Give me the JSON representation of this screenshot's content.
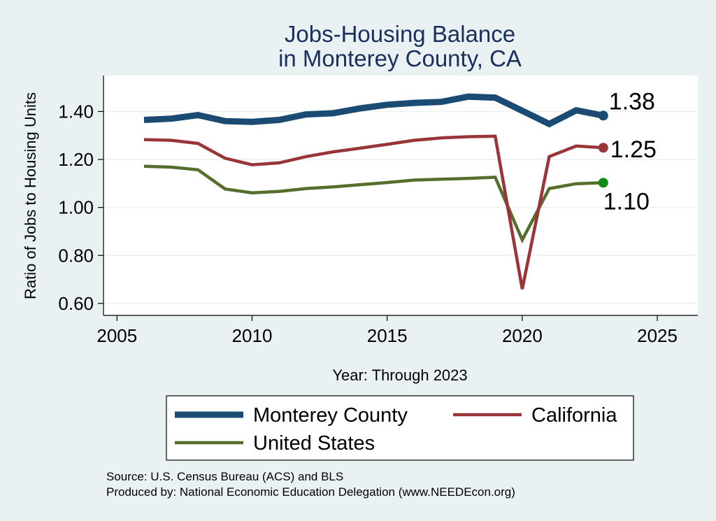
{
  "chart_data": {
    "type": "line",
    "title": [
      "Jobs-Housing Balance",
      "in Monterey County, CA"
    ],
    "xlabel": "Year: Through 2023",
    "ylabel": "Ratio of Jobs to Housing Units",
    "xlim": [
      2004.5,
      2026.5
    ],
    "ylim": [
      0.55,
      1.55
    ],
    "xticks": [
      2005,
      2010,
      2015,
      2020,
      2025
    ],
    "yticks": [
      0.6,
      0.8,
      1.0,
      1.2,
      1.4
    ],
    "ytick_labels": [
      "0.60",
      "0.80",
      "1.00",
      "1.20",
      "1.40"
    ],
    "grid": true,
    "x": [
      2006,
      2007,
      2008,
      2009,
      2010,
      2011,
      2012,
      2013,
      2014,
      2015,
      2016,
      2017,
      2018,
      2019,
      2020,
      2021,
      2022,
      2023
    ],
    "series": [
      {
        "name": "Monterey County",
        "color": "#1b4a72",
        "values": [
          1.365,
          1.37,
          1.385,
          1.36,
          1.357,
          1.365,
          1.388,
          1.393,
          1.413,
          1.428,
          1.436,
          1.44,
          1.462,
          1.458,
          1.403,
          1.348,
          1.405,
          1.383
        ],
        "end_label": "1.38"
      },
      {
        "name": "California",
        "color": "#993539",
        "values": [
          1.283,
          1.28,
          1.267,
          1.205,
          1.178,
          1.186,
          1.212,
          1.232,
          1.247,
          1.263,
          1.28,
          1.29,
          1.295,
          1.297,
          0.66,
          1.212,
          1.256,
          1.249
        ],
        "end_label": "1.25"
      },
      {
        "name": "United States",
        "color": "#556e2d",
        "values": [
          1.172,
          1.168,
          1.157,
          1.077,
          1.061,
          1.067,
          1.079,
          1.086,
          1.095,
          1.104,
          1.114,
          1.118,
          1.121,
          1.126,
          0.865,
          1.079,
          1.099,
          1.103
        ],
        "end_label": "1.10",
        "marker_color": "#0f8a13"
      }
    ],
    "legend_position": "bottom",
    "notes": [
      "Source: U.S. Census Bureau (ACS) and BLS",
      "Produced by: National Economic Education Delegation (www.NEEDEcon.org)"
    ]
  }
}
